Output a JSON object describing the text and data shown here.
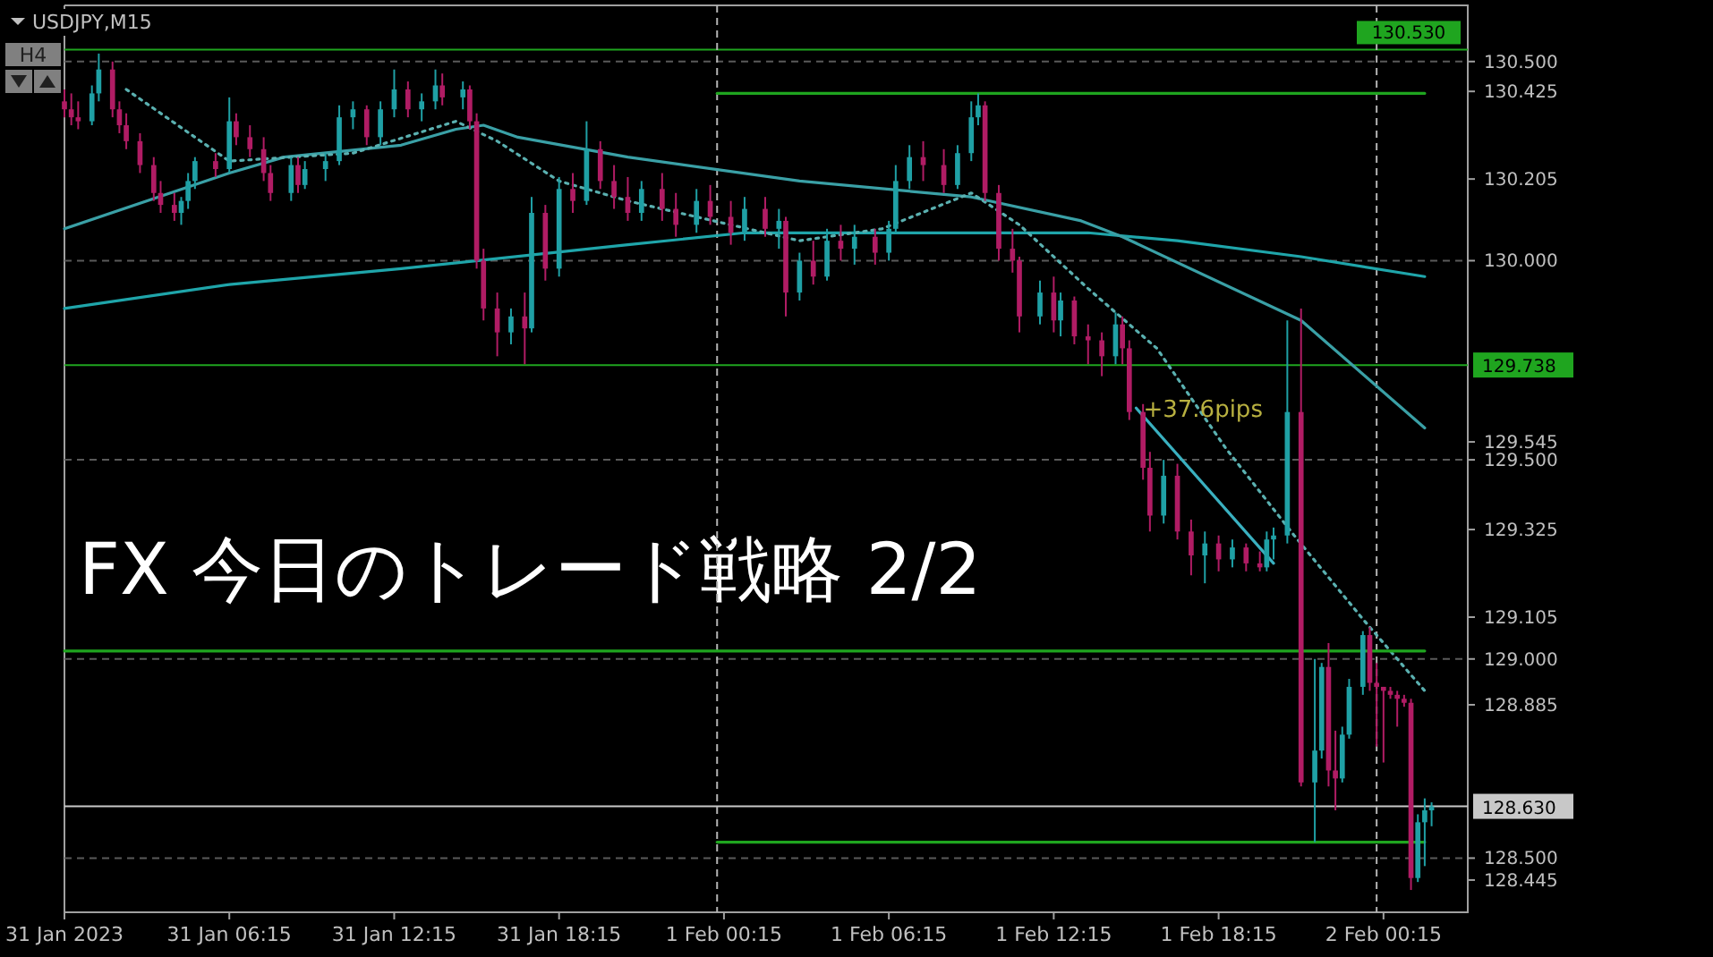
{
  "chart_data": {
    "type": "candlestick",
    "title": "FX 今日のトレード戦略 2/2",
    "annotations": [
      "USDJPY,M15",
      "H4",
      {
        "text": "+37.6pips",
        "x": "2023-02-01T15:15",
        "y": 129.63
      }
    ],
    "xlim": [
      "2023-01-31T00:15",
      "2023-02-02T03:19"
    ],
    "xticks": [
      {
        "value": "2023-01-31T00:15",
        "label": "31 Jan 2023"
      },
      {
        "value": "2023-01-31T06:15",
        "label": "31 Jan 06:15"
      },
      {
        "value": "2023-01-31T12:15",
        "label": "31 Jan 12:15"
      },
      {
        "value": "2023-01-31T18:15",
        "label": "31 Jan 18:15"
      },
      {
        "value": "2023-02-01T00:15",
        "label": "1 Feb 00:15"
      },
      {
        "value": "2023-02-01T06:15",
        "label": "1 Feb 06:15"
      },
      {
        "value": "2023-02-01T12:15",
        "label": "1 Feb 12:15"
      },
      {
        "value": "2023-02-01T18:15",
        "label": "1 Feb 18:15"
      },
      {
        "value": "2023-02-02T00:15",
        "label": "2 Feb 00:15"
      }
    ],
    "ylim": [
      128.364,
      130.641
    ],
    "yticks": [
      {
        "value": 130.5,
        "label": "130.500"
      },
      130.425,
      130.205,
      {
        "value": 130.0,
        "label": "130.000"
      },
      129.545,
      {
        "value": 129.5,
        "label": "129.500"
      },
      129.325,
      129.105,
      {
        "value": 129.0,
        "label": "129.000"
      },
      128.885,
      {
        "value": 128.5,
        "label": "128.500"
      },
      128.445
    ],
    "ref_lines": [
      {
        "axis": "y",
        "value": 130.53,
        "label": "130.530",
        "color": "#1fa51f",
        "line_style": "solid"
      },
      {
        "axis": "y",
        "value": 130.5,
        "color": "#5a5a5a",
        "line_style": "dashed"
      },
      {
        "axis": "y",
        "value": 130.0,
        "color": "#5a5a5a",
        "line_style": "dashed"
      },
      {
        "axis": "y",
        "value": 129.738,
        "label": "129.738",
        "color": "#1fa51f",
        "line_style": "solid"
      },
      {
        "axis": "y",
        "value": 129.5,
        "color": "#5a5a5a",
        "line_style": "dashed"
      },
      {
        "axis": "y",
        "value": 129.0,
        "color": "#5a5a5a",
        "line_style": "dashed"
      },
      {
        "axis": "y",
        "value": 128.63,
        "label": "128.630",
        "color": "#c8c8c8",
        "line_style": "solid"
      },
      {
        "axis": "y",
        "value": 128.5,
        "color": "#5a5a5a",
        "line_style": "dashed"
      },
      {
        "axis": "x",
        "value": "2023-02-01T00:00",
        "color": "#b4b4b4",
        "line_style": "dashed"
      },
      {
        "axis": "x",
        "value": "2023-02-02T00:00",
        "color": "#b4b4b4",
        "line_style": "dashed"
      }
    ],
    "series": [
      {
        "type": "line",
        "color": "#1fa5aa",
        "line_style": "solid",
        "x": [
          "2023-01-31T00:15",
          "2023-01-31T06:15",
          "2023-01-31T12:30",
          "2023-01-31T20:45",
          "2023-02-01T01:00",
          "2023-02-01T13:30",
          "2023-02-01T16:45",
          "2023-02-01T21:15",
          "2023-02-02T01:45"
        ],
        "values": [
          129.88,
          129.94,
          129.98,
          130.04,
          130.07,
          130.07,
          130.05,
          130.01,
          129.96
        ]
      },
      {
        "type": "line",
        "color": "#3aa0a6",
        "line_style": "solid",
        "x": [
          "2023-01-31T00:15",
          "2023-01-31T06:15",
          "2023-01-31T08:15",
          "2023-01-31T12:30",
          "2023-01-31T14:30",
          "2023-01-31T15:30",
          "2023-01-31T16:45",
          "2023-01-31T20:45",
          "2023-02-01T03:00",
          "2023-02-01T09:15",
          "2023-02-01T13:15",
          "2023-02-01T14:45",
          "2023-02-01T21:15",
          "2023-02-02T01:45"
        ],
        "values": [
          130.08,
          130.22,
          130.26,
          130.29,
          130.33,
          130.34,
          130.31,
          130.26,
          130.2,
          130.16,
          130.1,
          130.06,
          129.85,
          129.58
        ]
      },
      {
        "type": "line",
        "color": "#5ab0b0",
        "line_style": "dotted",
        "x": [
          "2023-01-31T02:30",
          "2023-01-31T06:15",
          "2023-01-31T10:45",
          "2023-01-31T14:30",
          "2023-01-31T16:00",
          "2023-01-31T18:15",
          "2023-01-31T20:45",
          "2023-02-01T03:00",
          "2023-02-01T06:00",
          "2023-02-01T09:15",
          "2023-02-01T11:00",
          "2023-02-01T13:30",
          "2023-02-01T16:00",
          "2023-02-01T18:30",
          "2023-02-01T21:00",
          "2023-02-01T23:30",
          "2023-02-02T01:45"
        ],
        "values": [
          130.43,
          130.25,
          130.27,
          130.35,
          130.3,
          130.2,
          130.15,
          130.05,
          130.08,
          130.17,
          130.09,
          129.93,
          129.78,
          129.53,
          129.31,
          129.1,
          128.92
        ]
      },
      {
        "type": "line",
        "color": "#1fa51f",
        "line_style": "solid",
        "x": [
          "2023-02-01T00:00",
          "2023-02-02T01:45"
        ],
        "values": [
          130.42,
          130.42
        ]
      },
      {
        "type": "line",
        "color": "#1fa51f",
        "line_style": "solid",
        "x": [
          "2023-01-31T00:15",
          "2023-02-02T01:45"
        ],
        "values": [
          129.02,
          129.02
        ]
      },
      {
        "type": "line",
        "color": "#1fa51f",
        "line_style": "solid",
        "x": [
          "2023-02-01T00:00",
          "2023-02-02T01:45"
        ],
        "values": [
          128.54,
          128.54
        ]
      },
      {
        "type": "line",
        "color": "#3ab0c0",
        "line_style": "solid",
        "x": [
          "2023-02-01T15:15",
          "2023-02-01T20:15"
        ],
        "values": [
          129.63,
          129.24
        ]
      }
    ],
    "x": [
      "2023-01-31T00:15",
      "2023-01-31T00:30",
      "2023-01-31T00:45",
      "2023-01-31T01:15",
      "2023-01-31T01:30",
      "2023-01-31T02:00",
      "2023-01-31T02:15",
      "2023-01-31T02:30",
      "2023-01-31T03:00",
      "2023-01-31T03:30",
      "2023-01-31T03:45",
      "2023-01-31T04:15",
      "2023-01-31T04:30",
      "2023-01-31T04:45",
      "2023-01-31T05:00",
      "2023-01-31T05:45",
      "2023-01-31T06:15",
      "2023-01-31T06:30",
      "2023-01-31T07:00",
      "2023-01-31T07:30",
      "2023-01-31T07:45",
      "2023-01-31T08:30",
      "2023-01-31T08:45",
      "2023-01-31T09:00",
      "2023-01-31T09:45",
      "2023-01-31T10:15",
      "2023-01-31T10:45",
      "2023-01-31T11:15",
      "2023-01-31T11:45",
      "2023-01-31T12:15",
      "2023-01-31T12:45",
      "2023-01-31T13:15",
      "2023-01-31T13:45",
      "2023-01-31T14:00",
      "2023-01-31T14:45",
      "2023-01-31T15:00",
      "2023-01-31T15:15",
      "2023-01-31T15:30",
      "2023-01-31T16:00",
      "2023-01-31T16:30",
      "2023-01-31T17:00",
      "2023-01-31T17:15",
      "2023-01-31T17:45",
      "2023-01-31T18:15",
      "2023-01-31T18:45",
      "2023-01-31T19:15",
      "2023-01-31T19:45",
      "2023-01-31T20:15",
      "2023-01-31T20:45",
      "2023-01-31T21:15",
      "2023-01-31T22:00",
      "2023-01-31T22:30",
      "2023-01-31T23:15",
      "2023-01-31T23:45",
      "2023-02-01T00:30",
      "2023-02-01T01:00",
      "2023-02-01T01:45",
      "2023-02-01T02:15",
      "2023-02-01T02:30",
      "2023-02-01T03:00",
      "2023-02-01T03:30",
      "2023-02-01T04:00",
      "2023-02-01T04:30",
      "2023-02-01T05:00",
      "2023-02-01T05:45",
      "2023-02-01T06:15",
      "2023-02-01T06:30",
      "2023-02-01T07:00",
      "2023-02-01T07:30",
      "2023-02-01T08:15",
      "2023-02-01T08:45",
      "2023-02-01T09:15",
      "2023-02-01T09:30",
      "2023-02-01T09:45",
      "2023-02-01T10:15",
      "2023-02-01T10:45",
      "2023-02-01T11:00",
      "2023-02-01T11:45",
      "2023-02-01T12:15",
      "2023-02-01T12:30",
      "2023-02-01T13:00",
      "2023-02-01T13:30",
      "2023-02-01T14:00",
      "2023-02-01T14:30",
      "2023-02-01T14:45",
      "2023-02-01T15:00",
      "2023-02-01T15:30",
      "2023-02-01T15:45",
      "2023-02-01T16:15",
      "2023-02-01T16:45",
      "2023-02-01T17:15",
      "2023-02-01T17:45",
      "2023-02-01T18:15",
      "2023-02-01T18:45",
      "2023-02-01T19:15",
      "2023-02-01T19:45",
      "2023-02-01T20:00",
      "2023-02-01T20:15",
      "2023-02-01T20:45",
      "2023-02-01T21:15",
      "2023-02-01T21:45",
      "2023-02-01T22:00",
      "2023-02-01T22:15",
      "2023-02-01T22:30",
      "2023-02-01T22:45",
      "2023-02-01T23:00",
      "2023-02-01T23:30",
      "2023-02-01T23:45",
      "2023-02-02T00:00",
      "2023-02-02T00:15",
      "2023-02-02T00:30",
      "2023-02-02T00:45",
      "2023-02-02T01:00",
      "2023-02-02T01:15",
      "2023-02-02T01:30",
      "2023-02-02T01:45",
      "2023-02-02T02:00"
    ],
    "ohlc": [
      [
        130.4,
        130.43,
        130.36,
        130.38
      ],
      [
        130.38,
        130.42,
        130.34,
        130.36
      ],
      [
        130.36,
        130.4,
        130.33,
        130.35
      ],
      [
        130.35,
        130.44,
        130.34,
        130.42
      ],
      [
        130.42,
        130.52,
        130.4,
        130.48
      ],
      [
        130.48,
        130.5,
        130.36,
        130.38
      ],
      [
        130.38,
        130.4,
        130.32,
        130.34
      ],
      [
        130.34,
        130.37,
        130.28,
        130.3
      ],
      [
        130.3,
        130.32,
        130.22,
        130.24
      ],
      [
        130.24,
        130.26,
        130.15,
        130.17
      ],
      [
        130.17,
        130.2,
        130.12,
        130.14
      ],
      [
        130.14,
        130.17,
        130.1,
        130.12
      ],
      [
        130.12,
        130.16,
        130.09,
        130.15
      ],
      [
        130.15,
        130.22,
        130.13,
        130.2
      ],
      [
        130.2,
        130.26,
        130.18,
        130.25
      ],
      [
        130.25,
        130.27,
        130.21,
        130.23
      ],
      [
        130.23,
        130.41,
        130.22,
        130.35
      ],
      [
        130.35,
        130.37,
        130.29,
        130.31
      ],
      [
        130.31,
        130.34,
        130.26,
        130.28
      ],
      [
        130.28,
        130.31,
        130.2,
        130.22
      ],
      [
        130.22,
        130.24,
        130.15,
        130.17
      ],
      [
        130.17,
        130.26,
        130.15,
        130.24
      ],
      [
        130.24,
        130.26,
        130.17,
        130.19
      ],
      [
        130.19,
        130.25,
        130.18,
        130.23
      ],
      [
        130.23,
        130.27,
        130.2,
        130.25
      ],
      [
        130.25,
        130.39,
        130.24,
        130.36
      ],
      [
        130.36,
        130.4,
        130.33,
        130.38
      ],
      [
        130.38,
        130.39,
        130.29,
        130.31
      ],
      [
        130.31,
        130.4,
        130.29,
        130.38
      ],
      [
        130.38,
        130.48,
        130.36,
        130.43
      ],
      [
        130.43,
        130.45,
        130.36,
        130.38
      ],
      [
        130.38,
        130.42,
        130.35,
        130.4
      ],
      [
        130.4,
        130.48,
        130.38,
        130.44
      ],
      [
        130.44,
        130.47,
        130.39,
        130.41
      ],
      [
        130.41,
        130.45,
        130.38,
        130.43
      ],
      [
        130.43,
        130.44,
        130.33,
        130.35
      ],
      [
        130.35,
        130.37,
        129.98,
        130.0
      ],
      [
        130.0,
        130.03,
        129.85,
        129.88
      ],
      [
        129.88,
        129.92,
        129.76,
        129.82
      ],
      [
        129.82,
        129.88,
        129.79,
        129.86
      ],
      [
        129.86,
        129.92,
        129.74,
        129.83
      ],
      [
        129.83,
        130.16,
        129.82,
        130.12
      ],
      [
        130.12,
        130.14,
        129.95,
        129.98
      ],
      [
        129.98,
        130.21,
        129.96,
        130.18
      ],
      [
        130.18,
        130.22,
        130.12,
        130.15
      ],
      [
        130.15,
        130.35,
        130.14,
        130.28
      ],
      [
        130.28,
        130.3,
        130.18,
        130.2
      ],
      [
        130.2,
        130.24,
        130.13,
        130.16
      ],
      [
        130.16,
        130.21,
        130.1,
        130.12
      ],
      [
        130.12,
        130.2,
        130.1,
        130.18
      ],
      [
        130.18,
        130.22,
        130.1,
        130.13
      ],
      [
        130.13,
        130.17,
        130.06,
        130.09
      ],
      [
        130.09,
        130.18,
        130.07,
        130.15
      ],
      [
        130.15,
        130.19,
        130.09,
        130.11
      ],
      [
        130.11,
        130.15,
        130.04,
        130.07
      ],
      [
        130.07,
        130.16,
        130.05,
        130.13
      ],
      [
        130.13,
        130.16,
        130.06,
        130.08
      ],
      [
        130.08,
        130.13,
        130.03,
        130.1
      ],
      [
        130.1,
        130.11,
        129.86,
        129.92
      ],
      [
        129.92,
        130.02,
        129.9,
        130.0
      ],
      [
        130.0,
        130.05,
        129.94,
        129.96
      ],
      [
        129.96,
        130.08,
        129.95,
        130.05
      ],
      [
        130.05,
        130.09,
        130.0,
        130.03
      ],
      [
        130.03,
        130.09,
        129.99,
        130.06
      ],
      [
        130.06,
        130.08,
        129.99,
        130.02
      ],
      [
        130.02,
        130.1,
        130.0,
        130.08
      ],
      [
        130.08,
        130.24,
        130.07,
        130.2
      ],
      [
        130.2,
        130.29,
        130.18,
        130.26
      ],
      [
        130.26,
        130.3,
        130.2,
        130.24
      ],
      [
        130.24,
        130.28,
        130.17,
        130.19
      ],
      [
        130.19,
        130.29,
        130.18,
        130.27
      ],
      [
        130.27,
        130.4,
        130.25,
        130.36
      ],
      [
        130.36,
        130.42,
        130.34,
        130.39
      ],
      [
        130.39,
        130.4,
        130.15,
        130.17
      ],
      [
        130.17,
        130.19,
        130.0,
        130.03
      ],
      [
        130.03,
        130.08,
        129.97,
        130.0
      ],
      [
        130.0,
        130.01,
        129.82,
        129.86
      ],
      [
        129.86,
        129.95,
        129.84,
        129.92
      ],
      [
        129.92,
        129.96,
        129.82,
        129.85
      ],
      [
        129.85,
        129.92,
        129.81,
        129.9
      ],
      [
        129.9,
        129.91,
        129.79,
        129.81
      ],
      [
        129.81,
        129.84,
        129.74,
        129.8
      ],
      [
        129.8,
        129.82,
        129.71,
        129.76
      ],
      [
        129.76,
        129.87,
        129.74,
        129.84
      ],
      [
        129.84,
        129.86,
        129.74,
        129.78
      ],
      [
        129.78,
        129.8,
        129.6,
        129.62
      ],
      [
        129.62,
        129.64,
        129.45,
        129.48
      ],
      [
        129.48,
        129.52,
        129.32,
        129.36
      ],
      [
        129.36,
        129.5,
        129.34,
        129.46
      ],
      [
        129.46,
        129.49,
        129.3,
        129.32
      ],
      [
        129.32,
        129.35,
        129.21,
        129.26
      ],
      [
        129.26,
        129.32,
        129.19,
        129.29
      ],
      [
        129.29,
        129.31,
        129.22,
        129.25
      ],
      [
        129.25,
        129.3,
        129.23,
        129.28
      ],
      [
        129.28,
        129.29,
        129.22,
        129.24
      ],
      [
        129.24,
        129.27,
        129.22,
        129.23
      ],
      [
        129.23,
        129.32,
        129.22,
        129.3
      ],
      [
        129.3,
        129.33,
        129.25,
        129.31
      ],
      [
        129.31,
        129.85,
        129.29,
        129.62
      ],
      [
        129.62,
        129.88,
        128.68,
        128.69
      ],
      [
        128.69,
        129.0,
        128.54,
        128.77
      ],
      [
        128.77,
        128.99,
        128.75,
        128.98
      ],
      [
        128.98,
        129.04,
        128.68,
        128.72
      ],
      [
        128.72,
        128.82,
        128.62,
        128.7
      ],
      [
        128.7,
        128.83,
        128.69,
        128.81
      ],
      [
        128.81,
        128.95,
        128.8,
        128.93
      ],
      [
        128.93,
        129.07,
        128.91,
        129.06
      ],
      [
        129.06,
        129.08,
        128.92,
        128.94
      ],
      [
        128.94,
        128.99,
        128.78,
        128.93
      ],
      [
        128.93,
        128.93,
        128.74,
        128.92
      ],
      [
        128.92,
        128.93,
        128.9,
        128.91
      ],
      [
        128.91,
        128.92,
        128.83,
        128.9
      ],
      [
        128.9,
        128.91,
        128.88,
        128.89
      ],
      [
        128.89,
        128.9,
        128.42,
        128.45
      ],
      [
        128.45,
        128.61,
        128.44,
        128.59
      ],
      [
        128.59,
        128.65,
        128.48,
        128.62
      ],
      [
        128.62,
        128.64,
        128.58,
        128.63
      ]
    ],
    "colors": [
      "#b01c64",
      "#b01c64",
      "#b01c64",
      "#1fa0a5",
      "#1fa0a5",
      "#b01c64",
      "#b01c64",
      "#b01c64",
      "#b01c64",
      "#b01c64",
      "#b01c64",
      "#b01c64",
      "#1fa0a5",
      "#1fa0a5",
      "#1fa0a5",
      "#b01c64",
      "#1fa0a5",
      "#b01c64",
      "#b01c64",
      "#b01c64",
      "#b01c64",
      "#1fa0a5",
      "#b01c64",
      "#1fa0a5",
      "#1fa0a5",
      "#1fa0a5",
      "#1fa0a5",
      "#b01c64",
      "#1fa0a5",
      "#1fa0a5",
      "#b01c64",
      "#1fa0a5",
      "#1fa0a5",
      "#b01c64",
      "#1fa0a5",
      "#b01c64",
      "#b01c64",
      "#b01c64",
      "#b01c64",
      "#1fa0a5",
      "#b01c64",
      "#1fa0a5",
      "#b01c64",
      "#1fa0a5",
      "#b01c64",
      "#1fa0a5",
      "#b01c64",
      "#b01c64",
      "#b01c64",
      "#1fa0a5",
      "#b01c64",
      "#b01c64",
      "#1fa0a5",
      "#b01c64",
      "#b01c64",
      "#1fa0a5",
      "#b01c64",
      "#1fa0a5",
      "#b01c64",
      "#1fa0a5",
      "#b01c64",
      "#1fa0a5",
      "#b01c64",
      "#1fa0a5",
      "#b01c64",
      "#1fa0a5",
      "#1fa0a5",
      "#1fa0a5",
      "#b01c64",
      "#b01c64",
      "#1fa0a5",
      "#1fa0a5",
      "#1fa0a5",
      "#b01c64",
      "#b01c64",
      "#b01c64",
      "#b01c64",
      "#1fa0a5",
      "#b01c64",
      "#1fa0a5",
      "#b01c64",
      "#b01c64",
      "#b01c64",
      "#1fa0a5",
      "#b01c64",
      "#b01c64",
      "#b01c64",
      "#b01c64",
      "#1fa0a5",
      "#b01c64",
      "#b01c64",
      "#1fa0a5",
      "#b01c64",
      "#1fa0a5",
      "#b01c64",
      "#b01c64",
      "#1fa0a5",
      "#1fa0a5",
      "#1fa0a5",
      "#b01c64",
      "#1fa0a5",
      "#1fa0a5",
      "#b01c64",
      "#b01c64",
      "#1fa0a5",
      "#1fa0a5",
      "#1fa0a5",
      "#b01c64",
      "#b01c64",
      "#b01c64",
      "#b01c64",
      "#b01c64",
      "#b01c64",
      "#b01c64",
      "#1fa0a5",
      "#1fa0a5",
      "#1fa0a5"
    ]
  }
}
